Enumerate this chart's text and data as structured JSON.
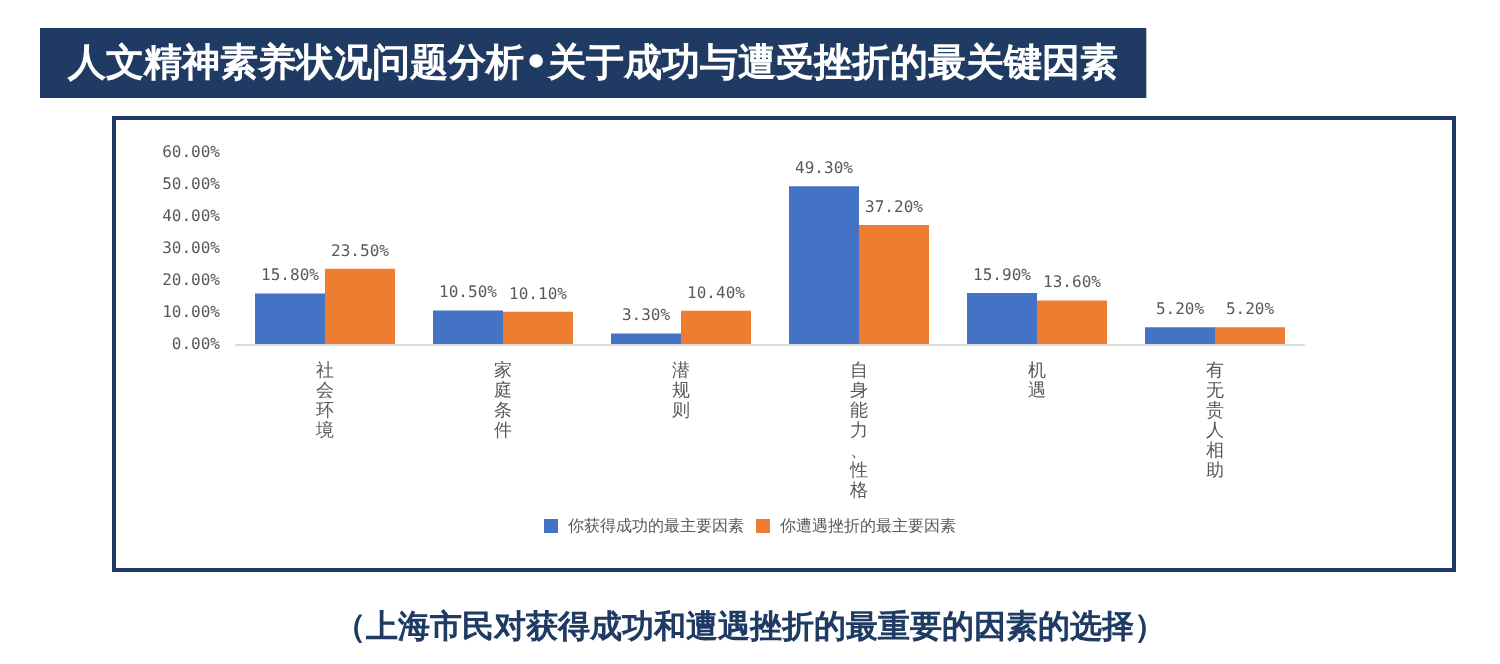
{
  "chart_data": {
    "type": "bar",
    "title": "人文精神素养状况问题分析•关于成功与遭受挫折的最关键因素",
    "categories": [
      "社会环境",
      "家庭条件",
      "潜规则",
      "自身能力、性格",
      "机遇",
      "有无贵人相助"
    ],
    "series": [
      {
        "name": "你获得成功的最主要因素",
        "color": "#4472c4",
        "values": [
          15.8,
          10.5,
          3.3,
          49.3,
          15.9,
          5.2
        ],
        "value_labels": [
          "15.80%",
          "10.50%",
          "3.30%",
          "49.30%",
          "15.90%",
          "5.20%"
        ]
      },
      {
        "name": "你遭遇挫折的最主要因素",
        "color": "#ed7d31",
        "values": [
          23.5,
          10.1,
          10.4,
          37.2,
          13.6,
          5.2
        ],
        "value_labels": [
          "23.50%",
          "10.10%",
          "10.40%",
          "37.20%",
          "13.60%",
          "5.20%"
        ]
      }
    ],
    "ylim": [
      0,
      60
    ],
    "yticks": [
      {
        "value": 0,
        "label": "0.00%"
      },
      {
        "value": 10,
        "label": "10.00%"
      },
      {
        "value": 20,
        "label": "20.00%"
      },
      {
        "value": 30,
        "label": "30.00%"
      },
      {
        "value": 40,
        "label": "40.00%"
      },
      {
        "value": 50,
        "label": "50.00%"
      },
      {
        "value": 60,
        "label": "60.00%"
      }
    ],
    "grid": false,
    "legend": "bottom",
    "annotations": [
      "（上海市民对获得成功和遭遇挫折的最重要的因素的选择）"
    ]
  }
}
